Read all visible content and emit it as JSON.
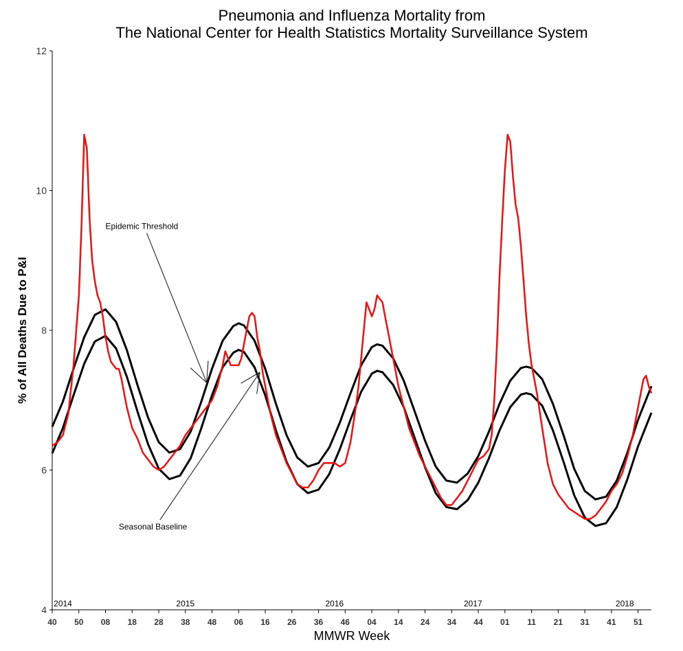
{
  "chart_data": {
    "type": "line",
    "title": [
      "Pneumonia and Influenza Mortality from",
      "The National Center for Health Statistics Mortality Surveillance System"
    ],
    "xlabel": "MMWR Week",
    "ylabel": "% of All Deaths Due to P&I",
    "ylim": [
      4,
      12
    ],
    "yticks": [
      4,
      6,
      8,
      10,
      12
    ],
    "x_unit": "week index starting at 2014 MMWR week 40",
    "xlim": [
      0,
      225
    ],
    "xtick_labels": [
      {
        "week": 0,
        "label": "40"
      },
      {
        "week": 10,
        "label": "50"
      },
      {
        "week": 20,
        "label": "08"
      },
      {
        "week": 30,
        "label": "18"
      },
      {
        "week": 40,
        "label": "28"
      },
      {
        "week": 50,
        "label": "38"
      },
      {
        "week": 60,
        "label": "48"
      },
      {
        "week": 70,
        "label": "06"
      },
      {
        "week": 80,
        "label": "16"
      },
      {
        "week": 90,
        "label": "26"
      },
      {
        "week": 100,
        "label": "36"
      },
      {
        "week": 110,
        "label": "46"
      },
      {
        "week": 120,
        "label": "04"
      },
      {
        "week": 130,
        "label": "14"
      },
      {
        "week": 140,
        "label": "24"
      },
      {
        "week": 150,
        "label": "34"
      },
      {
        "week": 160,
        "label": "44"
      },
      {
        "week": 170,
        "label": "01"
      },
      {
        "week": 180,
        "label": "11"
      },
      {
        "week": 190,
        "label": "21"
      },
      {
        "week": 200,
        "label": "31"
      },
      {
        "week": 210,
        "label": "41"
      },
      {
        "week": 220,
        "label": "51"
      }
    ],
    "year_labels": [
      {
        "week": 4,
        "label": "2014"
      },
      {
        "week": 50,
        "label": "2015"
      },
      {
        "week": 106,
        "label": "2016"
      },
      {
        "week": 158,
        "label": "2017"
      },
      {
        "week": 215,
        "label": "2018"
      }
    ],
    "annotations": [
      {
        "text": "Epidemic Threshold",
        "at_week": 20,
        "at_y": 9.45,
        "points_to_week": 58,
        "points_to_y": 7.25
      },
      {
        "text": "Seasonal Baseline",
        "at_week": 25,
        "at_y": 5.15,
        "points_to_week": 78,
        "points_to_y": 7.4
      }
    ],
    "series": [
      {
        "name": "",
        "color": "#ee1111",
        "x": [
          0,
          2,
          4,
          6,
          8,
          10,
          11,
          12,
          13,
          14,
          15,
          16,
          17,
          18,
          19,
          20,
          21,
          22,
          23,
          24,
          25,
          26,
          27,
          28,
          30,
          32,
          34,
          36,
          38,
          40,
          42,
          44,
          46,
          48,
          50,
          52,
          54,
          56,
          58,
          60,
          62,
          64,
          65,
          66,
          67,
          68,
          69,
          70,
          71,
          72,
          73,
          74,
          75,
          76,
          77,
          78,
          79,
          80,
          81,
          82,
          84,
          86,
          88,
          90,
          92,
          94,
          96,
          98,
          100,
          102,
          104,
          106,
          108,
          110,
          112,
          114,
          115,
          116,
          117,
          118,
          119,
          120,
          121,
          122,
          123,
          124,
          125,
          126,
          127,
          128,
          130,
          132,
          134,
          136,
          138,
          140,
          142,
          144,
          146,
          148,
          150,
          152,
          154,
          156,
          158,
          160,
          162,
          164,
          165,
          166,
          167,
          168,
          169,
          170,
          171,
          172,
          173,
          174,
          175,
          176,
          177,
          178,
          179,
          180,
          181,
          182,
          184,
          186,
          188,
          190,
          192,
          194,
          196,
          198,
          200,
          202,
          204,
          206,
          208,
          210,
          212,
          214,
          216,
          218,
          220,
          222,
          223,
          224,
          225
        ],
        "y": [
          6.35,
          6.4,
          6.5,
          6.8,
          7.5,
          8.5,
          9.5,
          10.8,
          10.6,
          9.6,
          9.0,
          8.7,
          8.5,
          8.4,
          8.2,
          7.9,
          7.7,
          7.55,
          7.5,
          7.45,
          7.45,
          7.3,
          7.1,
          6.9,
          6.6,
          6.45,
          6.25,
          6.15,
          6.05,
          6.0,
          6.05,
          6.15,
          6.25,
          6.35,
          6.5,
          6.6,
          6.7,
          6.8,
          6.9,
          7.0,
          7.2,
          7.5,
          7.7,
          7.6,
          7.5,
          7.5,
          7.5,
          7.5,
          7.6,
          7.8,
          8.0,
          8.2,
          8.25,
          8.2,
          7.9,
          7.7,
          7.4,
          7.2,
          7.0,
          6.8,
          6.5,
          6.3,
          6.1,
          5.95,
          5.8,
          5.75,
          5.75,
          5.85,
          6.0,
          6.1,
          6.1,
          6.1,
          6.05,
          6.1,
          6.4,
          6.9,
          7.2,
          7.6,
          8.0,
          8.4,
          8.3,
          8.2,
          8.3,
          8.5,
          8.45,
          8.4,
          8.2,
          8.0,
          7.8,
          7.6,
          7.2,
          6.9,
          6.6,
          6.4,
          6.2,
          6.05,
          5.9,
          5.75,
          5.6,
          5.5,
          5.5,
          5.6,
          5.7,
          5.85,
          6.0,
          6.15,
          6.2,
          6.3,
          6.5,
          7.0,
          7.8,
          8.8,
          9.6,
          10.3,
          10.8,
          10.7,
          10.2,
          9.8,
          9.6,
          9.2,
          8.7,
          8.2,
          7.8,
          7.5,
          7.3,
          7.1,
          6.6,
          6.1,
          5.8,
          5.65,
          5.55,
          5.45,
          5.4,
          5.35,
          5.3,
          5.3,
          5.35,
          5.45,
          5.55,
          5.7,
          5.8,
          5.95,
          6.2,
          6.5,
          6.9,
          7.3,
          7.35,
          7.2,
          7.1
        ]
      },
      {
        "name": "Epidemic Threshold",
        "color": "#000000",
        "baseline_offset": 0.38,
        "x": [
          0,
          4,
          8,
          12,
          16,
          20,
          24,
          28,
          32,
          36,
          40,
          44,
          48,
          52,
          56,
          60,
          64,
          68,
          70,
          72,
          76,
          80,
          84,
          88,
          92,
          96,
          100,
          104,
          108,
          112,
          116,
          120,
          122,
          124,
          128,
          132,
          136,
          140,
          144,
          148,
          152,
          156,
          160,
          164,
          168,
          172,
          176,
          178,
          180,
          184,
          188,
          192,
          196,
          200,
          204,
          208,
          212,
          216,
          220,
          225
        ],
        "y": [
          6.62,
          6.98,
          7.45,
          7.9,
          8.22,
          8.3,
          8.12,
          7.72,
          7.22,
          6.75,
          6.4,
          6.25,
          6.3,
          6.55,
          6.98,
          7.45,
          7.85,
          8.06,
          8.1,
          8.07,
          7.85,
          7.45,
          6.95,
          6.5,
          6.18,
          6.05,
          6.1,
          6.32,
          6.68,
          7.1,
          7.5,
          7.76,
          7.8,
          7.78,
          7.6,
          7.28,
          6.85,
          6.42,
          6.05,
          5.85,
          5.82,
          5.95,
          6.2,
          6.55,
          6.95,
          7.28,
          7.46,
          7.48,
          7.46,
          7.3,
          6.95,
          6.5,
          6.02,
          5.7,
          5.58,
          5.62,
          5.85,
          6.25,
          6.72,
          7.2
        ]
      },
      {
        "name": "Seasonal Baseline",
        "color": "#000000",
        "derived_from": "Epidemic Threshold minus baseline_offset"
      }
    ]
  }
}
